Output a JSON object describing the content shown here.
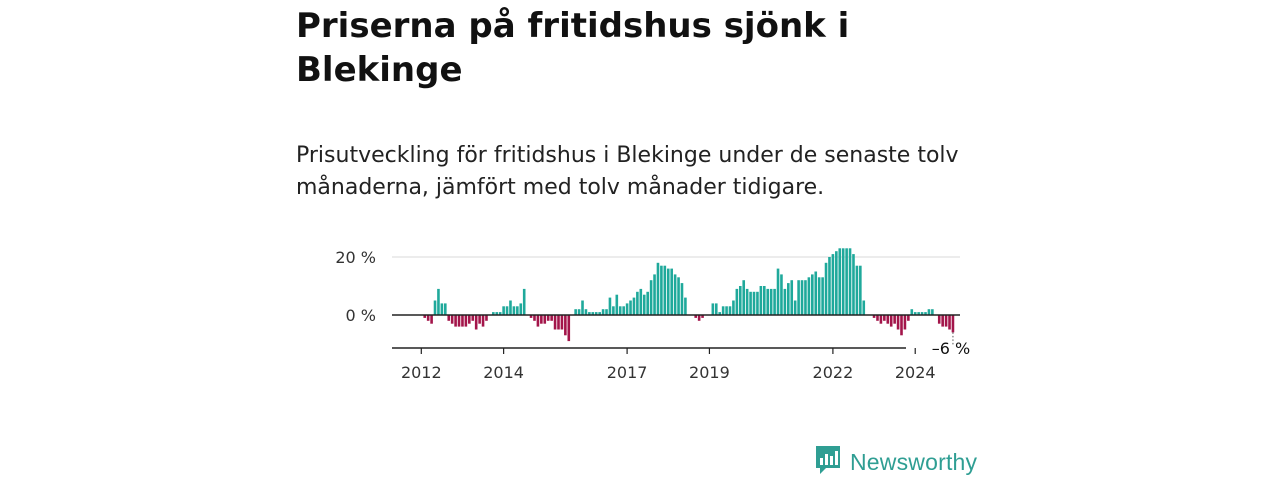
{
  "header": {
    "title": "Priserna på fritidshus sjönk i Blekinge",
    "subtitle": "Prisutveckling för fritidshus i Blekinge under de senaste tolv månaderna, jämfört med tolv månader tidigare."
  },
  "brand": {
    "name": "Newsworthy",
    "color": "#2f9e93",
    "icon": "newsworthy-logo-icon"
  },
  "colors": {
    "positive": "#1fa99b",
    "negative": "#a3154a",
    "grid": "#d9d9d9",
    "axis": "#222222"
  },
  "chart_data": {
    "type": "bar",
    "title": "Priserna på fritidshus sjönk i Blekinge",
    "subtitle": "Prisutveckling för fritidshus i Blekinge under de senaste tolv månaderna, jämfört med tolv månader tidigare.",
    "xlabel": "",
    "ylabel": "",
    "ylim": [
      -11,
      24
    ],
    "y_ticks": [
      {
        "value": 0,
        "label": "0 %"
      },
      {
        "value": 20,
        "label": "20 %"
      }
    ],
    "x_ticks": [
      {
        "index": 8,
        "label": "2012"
      },
      {
        "index": 32,
        "label": "2014"
      },
      {
        "index": 68,
        "label": "2017"
      },
      {
        "index": 92,
        "label": "2019"
      },
      {
        "index": 128,
        "label": "2022"
      },
      {
        "index": 152,
        "label": "2024"
      }
    ],
    "last_value_label": "–6 %",
    "series": [
      {
        "values": [
          0,
          0,
          0,
          0,
          0,
          0,
          0,
          0,
          0,
          -1,
          -2,
          -3,
          5,
          9,
          4,
          4,
          -2,
          -3,
          -4,
          -4,
          -4,
          -4,
          -3,
          -2,
          -5,
          -3,
          -4,
          -2,
          0,
          1,
          1,
          1,
          3,
          3,
          5,
          3,
          3,
          4,
          9,
          0,
          -1,
          -2,
          -4,
          -3,
          -3,
          -2,
          -2,
          -5,
          -5,
          -5,
          -7,
          -9,
          0,
          2,
          2,
          5,
          2,
          1,
          1,
          1,
          1,
          2,
          2,
          6,
          3,
          7,
          3,
          3,
          4,
          5,
          6,
          8,
          9,
          7,
          8,
          12,
          14,
          18,
          17,
          17,
          16,
          16,
          14,
          13,
          11,
          6,
          0,
          0,
          -1,
          -2,
          -1,
          0,
          0,
          4,
          4,
          1,
          3,
          3,
          3,
          5,
          9,
          10,
          12,
          9,
          8,
          8,
          8,
          10,
          10,
          9,
          9,
          9,
          16,
          14,
          9,
          11,
          12,
          5,
          12,
          12,
          12,
          13,
          14,
          15,
          13,
          13,
          18,
          20,
          21,
          22,
          23,
          23,
          23,
          23,
          21,
          17,
          17,
          5,
          0,
          0,
          -1,
          -2,
          -3,
          -2,
          -3,
          -4,
          -3,
          -5,
          -7,
          -5,
          -2,
          2,
          1,
          1,
          1,
          1,
          2,
          2,
          0,
          -3,
          -4,
          -4,
          -5,
          -6
        ]
      }
    ]
  }
}
